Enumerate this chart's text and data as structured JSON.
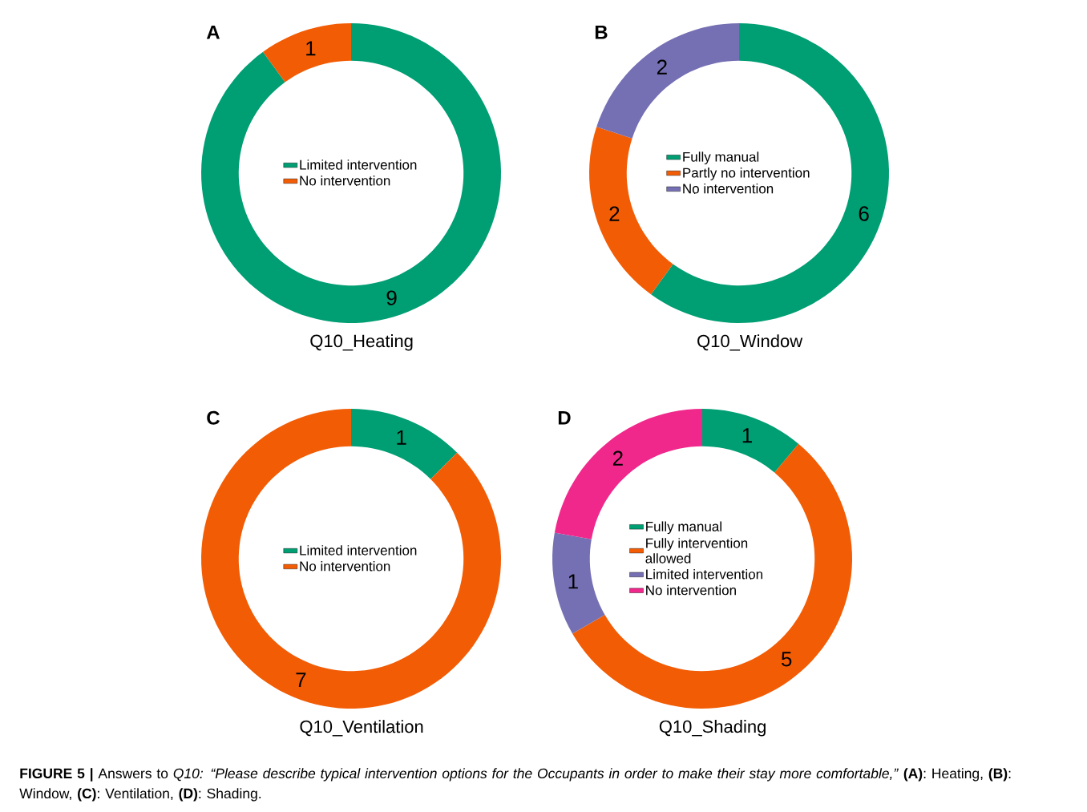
{
  "chart_data": [
    {
      "type": "donut",
      "title": "A",
      "xlabel": "Q10_Heating",
      "categories": [
        "Limited intervention",
        "No intervention"
      ],
      "values": [
        9,
        1
      ],
      "colors": [
        "#009e73",
        "#f25c05"
      ],
      "data_labels": true,
      "legend": "center"
    },
    {
      "type": "donut",
      "title": "B",
      "xlabel": "Q10_Window",
      "categories": [
        "Fully manual",
        "Partly no intervention",
        "No intervention"
      ],
      "values": [
        6,
        2,
        2
      ],
      "colors": [
        "#009e73",
        "#f25c05",
        "#7570b3"
      ],
      "data_labels": true,
      "legend": "center"
    },
    {
      "type": "donut",
      "title": "C",
      "xlabel": "Q10_Ventilation",
      "categories": [
        "Limited intervention",
        "No intervention"
      ],
      "values": [
        1,
        7
      ],
      "colors": [
        "#009e73",
        "#f25c05"
      ],
      "data_labels": true,
      "legend": "center"
    },
    {
      "type": "donut",
      "title": "D",
      "xlabel": "Q10_Shading",
      "categories": [
        "Fully manual",
        "Fully intervention allowed",
        "Limited intervention",
        "No intervention"
      ],
      "values": [
        1,
        5,
        1,
        2
      ],
      "colors": [
        "#009e73",
        "#f25c05",
        "#7570b3",
        "#f0288c"
      ],
      "data_labels": true,
      "legend": "center"
    },
    {
      "type": "other",
      "annotations": [
        "**FIGURE 5 |** Answers to *Q10: “Please describe typical intervention options for the Occupants in order to make their stay more comfortable,”* **(A)**: Heating, **(B)**: Window, **(C)**: Ventilation, **(D)**: Shading."
      ]
    }
  ]
}
